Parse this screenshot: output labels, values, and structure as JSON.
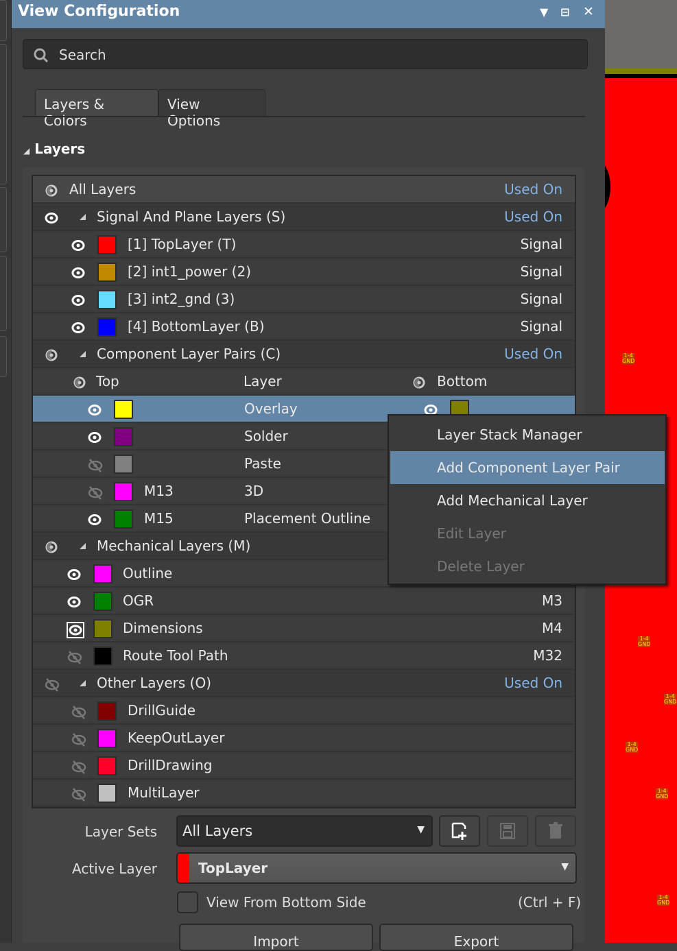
{
  "panel": {
    "title": "View Configuration",
    "search_placeholder": "Search",
    "tabs": [
      {
        "label": "Layers & Colors",
        "active": true
      },
      {
        "label": "View Options",
        "active": false
      }
    ],
    "section_title": "Layers"
  },
  "layers": {
    "all": {
      "label": "All Layers",
      "right": "Used On",
      "eye": "partial"
    },
    "rows": [
      {
        "kind": "group",
        "label": "Signal And Plane Layers (S)",
        "right": "Used On",
        "eye": "visible"
      },
      {
        "kind": "signal",
        "label": "[1] TopLayer (T)",
        "right": "Signal",
        "color": "#ff0000",
        "eye": "visible"
      },
      {
        "kind": "signal",
        "label": "[2] int1_power (2)",
        "right": "Signal",
        "color": "#c08a00",
        "eye": "visible"
      },
      {
        "kind": "signal",
        "label": "[3] int2_gnd (3)",
        "right": "Signal",
        "color": "#66ddff",
        "eye": "visible"
      },
      {
        "kind": "signal",
        "label": "[4] BottomLayer (B)",
        "right": "Signal",
        "color": "#0000ff",
        "eye": "visible"
      },
      {
        "kind": "group",
        "label": "Component Layer Pairs (C)",
        "right": "Used On",
        "eye": "partial"
      },
      {
        "kind": "pairheader",
        "top": "Top",
        "layer": "Layer",
        "bottom": "Bottom"
      },
      {
        "kind": "pair",
        "label": "Overlay",
        "color": "#ffff00",
        "bottom_color": "#808000",
        "eye": "visible",
        "bottom_eye": "visible",
        "selected": true
      },
      {
        "kind": "pair",
        "label": "Solder",
        "color": "#800080",
        "eye": "visible"
      },
      {
        "kind": "pair",
        "label": "Paste",
        "color": "#808080",
        "eye": "hidden"
      },
      {
        "kind": "pair",
        "label": "3D",
        "mech": "M13",
        "color": "#ff00ff",
        "eye": "hidden"
      },
      {
        "kind": "pair",
        "label": "Placement Outline",
        "mech": "M15",
        "color": "#008000",
        "eye": "visible"
      },
      {
        "kind": "group",
        "label": "Mechanical Layers (M)",
        "eye": "partial"
      },
      {
        "kind": "mech",
        "label": "Outline",
        "color": "#ff00ff",
        "eye": "visible"
      },
      {
        "kind": "mech",
        "label": "OGR",
        "right": "M3",
        "color": "#008000",
        "eye": "visible"
      },
      {
        "kind": "mech",
        "label": "Dimensions",
        "right": "M4",
        "color": "#808000",
        "eye": "boxed"
      },
      {
        "kind": "mech",
        "label": "Route Tool Path",
        "right": "M32",
        "color": "#000000",
        "eye": "hidden"
      },
      {
        "kind": "group",
        "label": "Other Layers (O)",
        "right": "Used On",
        "eye": "hidden"
      },
      {
        "kind": "signal",
        "label": "DrillGuide",
        "color": "#800000",
        "eye": "hidden"
      },
      {
        "kind": "signal",
        "label": "KeepOutLayer",
        "color": "#ff00ff",
        "eye": "hidden"
      },
      {
        "kind": "signal",
        "label": "DrillDrawing",
        "color": "#ff002a",
        "eye": "hidden"
      },
      {
        "kind": "signal",
        "label": "MultiLayer",
        "color": "#c0c0c0",
        "eye": "hidden"
      }
    ]
  },
  "context_menu": [
    {
      "label": "Layer Stack Manager",
      "enabled": true
    },
    {
      "label": "Add Component Layer Pair",
      "enabled": true,
      "highlighted": true
    },
    {
      "label": "Add Mechanical Layer",
      "enabled": true
    },
    {
      "label": "Edit Layer",
      "enabled": false
    },
    {
      "label": "Delete Layer",
      "enabled": false
    }
  ],
  "footer": {
    "layer_sets_label": "Layer Sets",
    "layer_sets_value": "All Layers",
    "active_layer_label": "Active Layer",
    "active_layer_value": "TopLayer",
    "active_layer_color": "#ff0000",
    "view_bottom_label": "View From Bottom Side",
    "view_bottom_checked": false,
    "view_bottom_shortcut": "(Ctrl + F)",
    "import_label": "Import",
    "export_label": "Export"
  },
  "pcb": {
    "pad_label_1": "1-4",
    "pad_label_2": "GND"
  },
  "colors": {
    "accent": "#6385a5",
    "used_on": "#86b3e6"
  }
}
